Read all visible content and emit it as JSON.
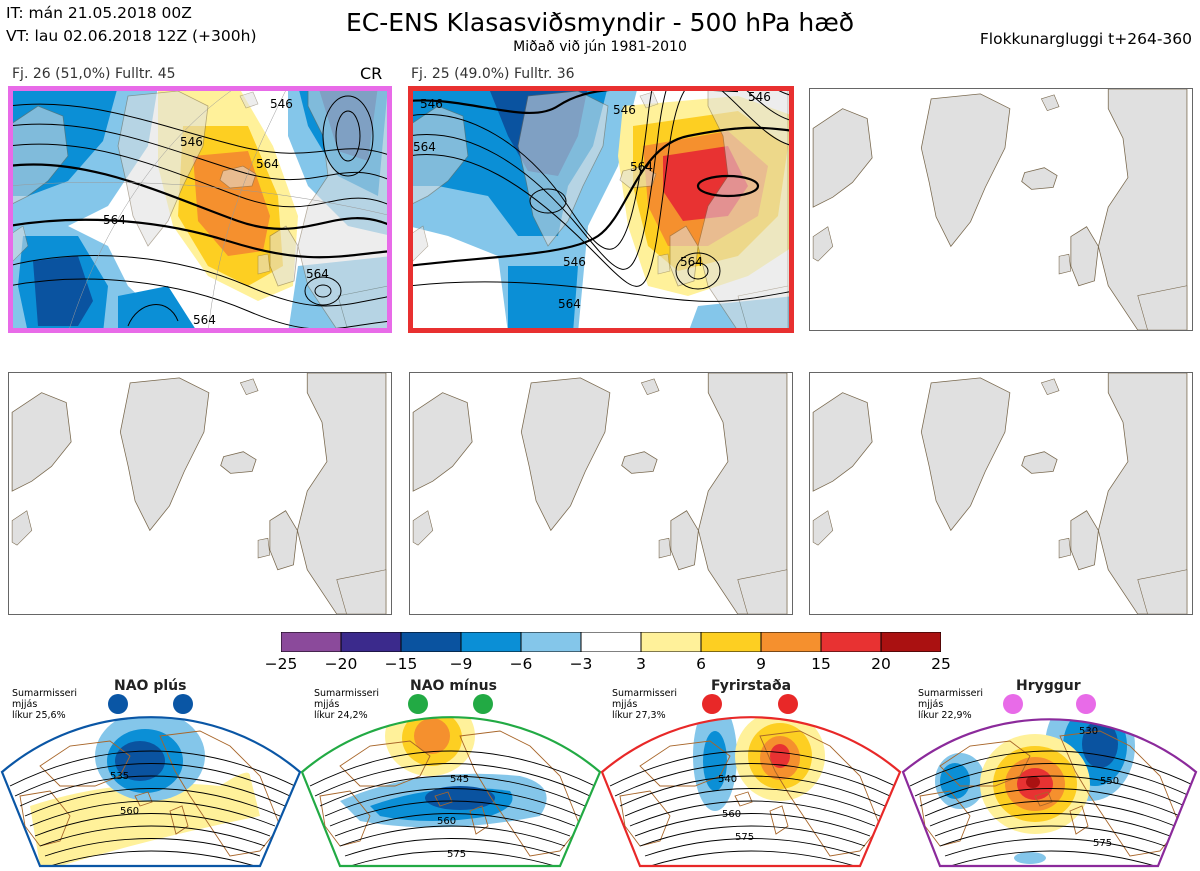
{
  "header": {
    "init_time": "IT: mán 21.05.2018 00Z",
    "valid_time": "VT: lau 02.06.2018 12Z  (+300h)",
    "title": "EC-ENS Klasasviðsmyndir - 500 hPa hæð",
    "subtitle": "Miðað við jún 1981-2010",
    "window": "Flokkunargluggi t+264-360"
  },
  "clusters": [
    {
      "label": "Fj. 26 (51,0%)   Fulltr. 45",
      "tag": "CR",
      "frame_color": "#e86be8",
      "contour_labels": [
        "546",
        "564",
        "564",
        "546",
        "564",
        "564"
      ]
    },
    {
      "label": "Fj. 25 (49.0%)   Fulltr. 36",
      "tag": "",
      "frame_color": "#e83030",
      "contour_labels": [
        "546",
        "564",
        "546",
        "564",
        "546",
        "564",
        "546",
        "564"
      ]
    }
  ],
  "colorbar": {
    "ticks": [
      "−25",
      "−20",
      "−15",
      "−9",
      "−6",
      "−3",
      "3",
      "6",
      "9",
      "15",
      "20",
      "25"
    ],
    "colors": [
      "#8b4a9b",
      "#3b2a8c",
      "#0a53a0",
      "#0b8fd6",
      "#84c6ea",
      "#ffffff",
      "#fff19a",
      "#fdcf22",
      "#f5902e",
      "#e83232",
      "#aa1111"
    ]
  },
  "regimes": [
    {
      "name": "NAO plús",
      "season": "Sumarmisseri",
      "smooth": "mjjás",
      "prob": "líkur 25,6%",
      "dot_color": "#0a56a5",
      "frame_color": "#0a56a5",
      "contour_labels": [
        "535",
        "560"
      ]
    },
    {
      "name": "NAO mínus",
      "season": "Sumarmisseri",
      "smooth": "mjjás",
      "prob": "líkur 24,2%",
      "dot_color": "#22aa44",
      "frame_color": "#22aa44",
      "contour_labels": [
        "545",
        "560",
        "575"
      ]
    },
    {
      "name": "Fyrirstaða",
      "season": "Sumarmisseri",
      "smooth": "mjjás",
      "prob": "líkur 27,3%",
      "dot_color": "#e82828",
      "frame_color": "#e82828",
      "contour_labels": [
        "540",
        "560",
        "575"
      ]
    },
    {
      "name": "Hryggur",
      "season": "Sumarmisseri",
      "smooth": "mjjás",
      "prob": "líkur 22,9%",
      "dot_color": "#e86be8",
      "frame_color": "#8b2a9b",
      "contour_labels": [
        "530",
        "550",
        "575"
      ]
    }
  ]
}
